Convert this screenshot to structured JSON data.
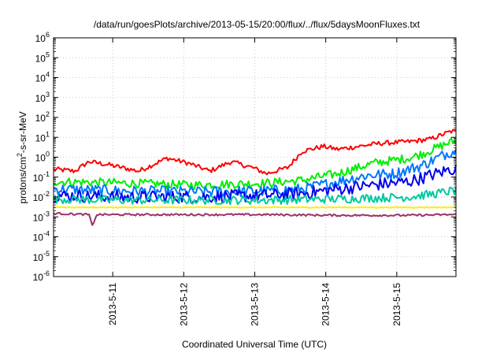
{
  "chart_data": {
    "type": "line",
    "title": "/data/run/goesPlots/archive/2013-05-15/20:00/flux/../flux/5daysMoonFluxes.txt",
    "xlabel": "Coordinated Universal Time (UTC)",
    "ylabel": {
      "prefix": "protons/cm",
      "sup": "2",
      "suffix": "-s-sr-MeV"
    },
    "y_scale": "log",
    "ylim_exp": [
      -6,
      6
    ],
    "y_ticks": [
      {
        "base": "10",
        "exp": "-6",
        "value": -6
      },
      {
        "base": "10",
        "exp": "-5",
        "value": -5
      },
      {
        "base": "10",
        "exp": "-4",
        "value": -4
      },
      {
        "base": "10",
        "exp": "-3",
        "value": -3
      },
      {
        "base": "10",
        "exp": "-2",
        "value": -2
      },
      {
        "base": "10",
        "exp": "-1",
        "value": -1
      },
      {
        "base": "10",
        "exp": "0",
        "value": 0
      },
      {
        "base": "10",
        "exp": "1",
        "value": 1
      },
      {
        "base": "10",
        "exp": "2",
        "value": 2
      },
      {
        "base": "10",
        "exp": "3",
        "value": 3
      },
      {
        "base": "10",
        "exp": "4",
        "value": 4
      },
      {
        "base": "10",
        "exp": "5",
        "value": 5
      },
      {
        "base": "10",
        "exp": "6",
        "value": 6
      }
    ],
    "x_range_days": [
      "2013-05-10 04:00",
      "2013-05-15 20:00"
    ],
    "x_ticks": [
      {
        "label": "2013-5-11",
        "day": 1
      },
      {
        "label": "2013-5-12",
        "day": 2
      },
      {
        "label": "2013-5-13",
        "day": 3
      },
      {
        "label": "2013-5-14",
        "day": 4
      },
      {
        "label": "2013-5-15",
        "day": 5
      }
    ],
    "grid": true,
    "series": [
      {
        "color": "#ff0000",
        "points": [
          [
            0,
            0.25
          ],
          [
            0.3,
            0.2
          ],
          [
            0.5,
            0.6
          ],
          [
            0.8,
            0.4
          ],
          [
            1.2,
            0.2
          ],
          [
            1.6,
            0.9
          ],
          [
            1.9,
            0.5
          ],
          [
            2.2,
            0.2
          ],
          [
            2.5,
            0.6
          ],
          [
            2.8,
            0.3
          ],
          [
            3.0,
            0.15
          ],
          [
            3.3,
            0.3
          ],
          [
            3.5,
            2.0
          ],
          [
            3.8,
            3.5
          ],
          [
            4.0,
            2.5
          ],
          [
            4.3,
            3.5
          ],
          [
            4.6,
            5.0
          ],
          [
            5.0,
            6.0
          ],
          [
            5.3,
            8.0
          ],
          [
            5.6,
            20
          ]
        ]
      },
      {
        "color": "#00ee00",
        "points": [
          [
            0,
            0.06
          ],
          [
            1.0,
            0.05
          ],
          [
            2.0,
            0.04
          ],
          [
            3.0,
            0.05
          ],
          [
            3.5,
            0.07
          ],
          [
            4.0,
            0.15
          ],
          [
            4.5,
            0.5
          ],
          [
            5.0,
            0.9
          ],
          [
            5.2,
            1.5
          ],
          [
            5.6,
            6.0
          ]
        ]
      },
      {
        "color": "#0077ff",
        "points": [
          [
            0,
            0.025
          ],
          [
            1.0,
            0.02
          ],
          [
            2.0,
            0.018
          ],
          [
            3.0,
            0.02
          ],
          [
            3.5,
            0.025
          ],
          [
            4.0,
            0.06
          ],
          [
            4.4,
            0.12
          ],
          [
            4.8,
            0.15
          ],
          [
            5.2,
            0.4
          ],
          [
            5.6,
            2.0
          ]
        ]
      },
      {
        "color": "#0000ee",
        "points": [
          [
            0,
            0.012
          ],
          [
            1.0,
            0.01
          ],
          [
            2.0,
            0.01
          ],
          [
            3.0,
            0.012
          ],
          [
            3.5,
            0.015
          ],
          [
            4.0,
            0.025
          ],
          [
            4.5,
            0.04
          ],
          [
            5.0,
            0.06
          ],
          [
            5.3,
            0.12
          ],
          [
            5.6,
            0.25
          ]
        ]
      },
      {
        "color": "#00c8a0",
        "points": [
          [
            0,
            0.008
          ],
          [
            1.0,
            0.007
          ],
          [
            2.0,
            0.007
          ],
          [
            3.0,
            0.007
          ],
          [
            4.0,
            0.008
          ],
          [
            5.0,
            0.01
          ],
          [
            5.4,
            0.015
          ],
          [
            5.6,
            0.02
          ]
        ]
      },
      {
        "color": "#ffee00",
        "points": [
          [
            0,
            0.003
          ],
          [
            1.0,
            0.003
          ],
          [
            2.0,
            0.003
          ],
          [
            3.0,
            0.003
          ],
          [
            4.0,
            0.003
          ],
          [
            5.0,
            0.003
          ],
          [
            5.6,
            0.003
          ]
        ]
      },
      {
        "color": "#993366",
        "points": [
          [
            0,
            0.0015
          ],
          [
            0.5,
            0.0013
          ],
          [
            0.55,
            0.0003
          ],
          [
            0.6,
            0.0013
          ],
          [
            1.0,
            0.0013
          ],
          [
            2.0,
            0.0013
          ],
          [
            3.0,
            0.0013
          ],
          [
            4.0,
            0.0012
          ],
          [
            5.0,
            0.0012
          ],
          [
            5.6,
            0.0013
          ]
        ]
      }
    ]
  }
}
